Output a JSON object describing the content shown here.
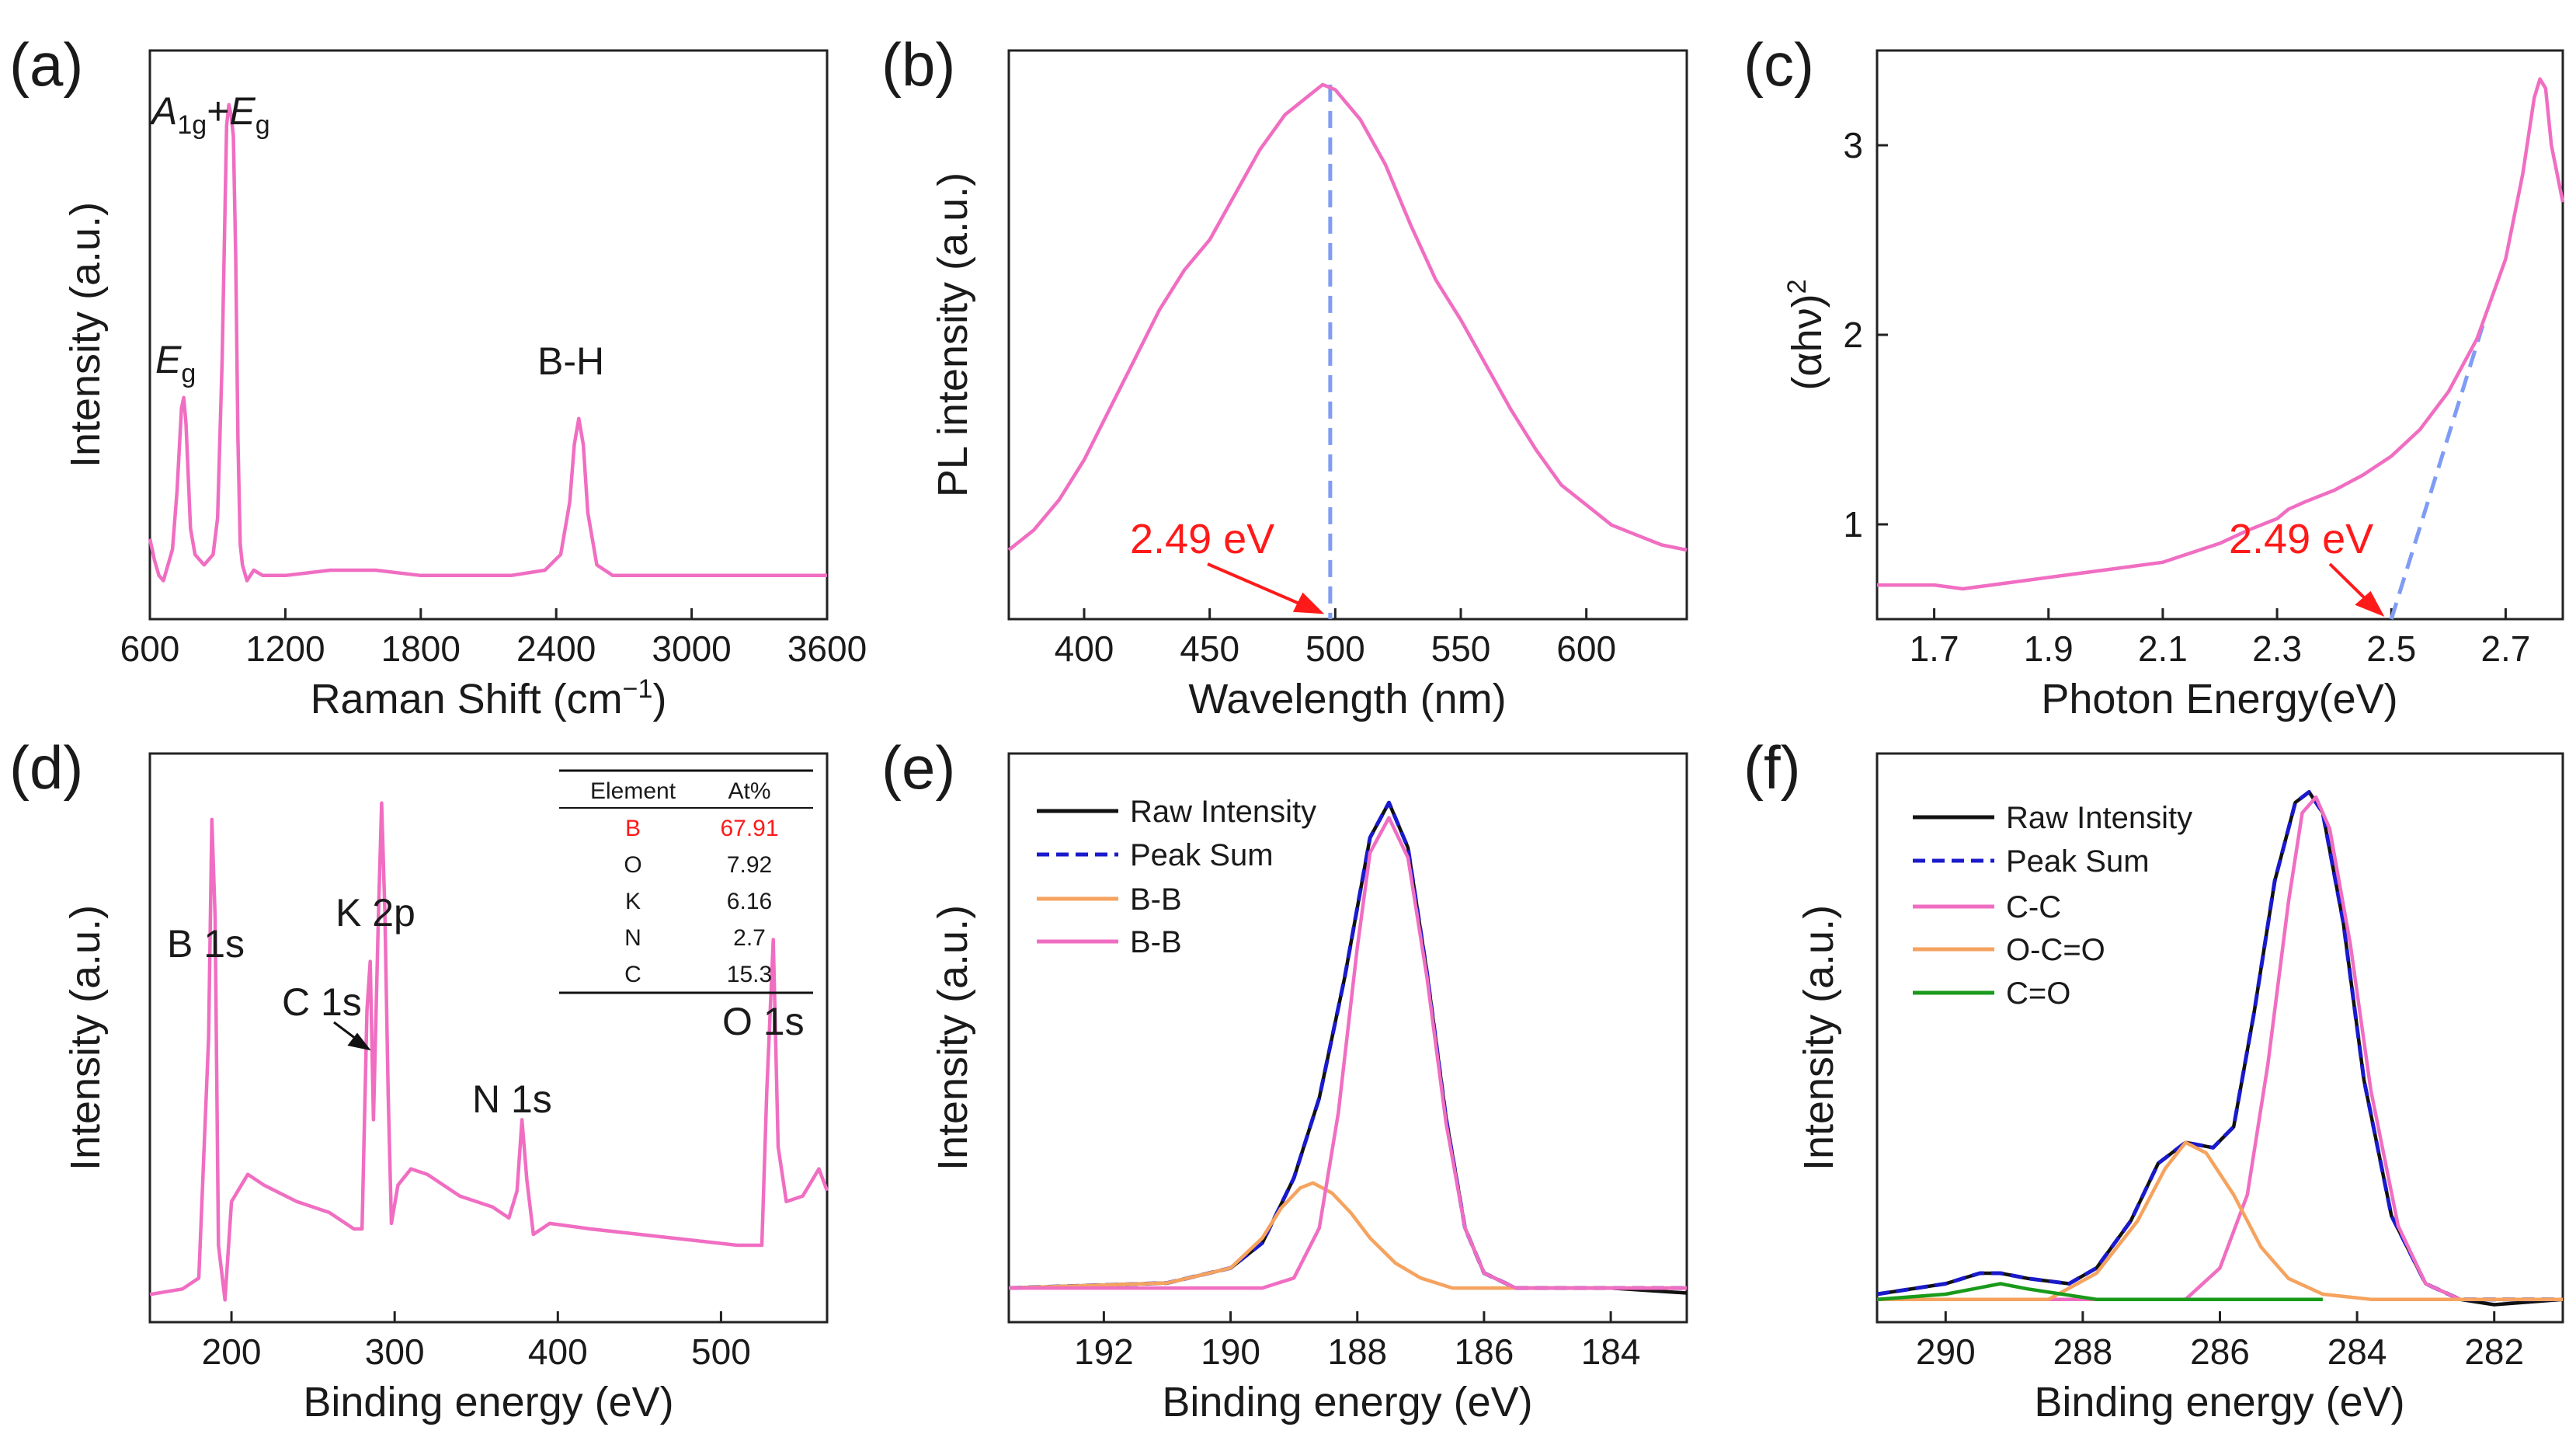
{
  "chart_data": [
    {
      "id": "a",
      "panel_label": "(a)",
      "type": "line",
      "xlabel": "Raman Shift (cm",
      "xlabel_sup": "−1",
      "xlabel_end": ")",
      "ylabel": "Intensity (a.u.)",
      "xlim": [
        600,
        3600
      ],
      "ylim": [
        0,
        1
      ],
      "xticks": [
        600,
        1200,
        1800,
        2400,
        3000,
        3600
      ],
      "series": [
        {
          "name": "Raman",
          "color": "#f06ec2",
          "x": [
            600,
            620,
            640,
            660,
            680,
            700,
            720,
            740,
            750,
            760,
            780,
            800,
            840,
            880,
            900,
            920,
            940,
            950,
            960,
            970,
            980,
            990,
            1000,
            1010,
            1030,
            1060,
            1100,
            1200,
            1400,
            1600,
            1800,
            2000,
            2200,
            2350,
            2420,
            2460,
            2480,
            2500,
            2520,
            2540,
            2580,
            2650,
            2800,
            3000,
            3200,
            3400,
            3600
          ],
          "y": [
            0.11,
            0.07,
            0.04,
            0.03,
            0.06,
            0.09,
            0.2,
            0.36,
            0.38,
            0.33,
            0.13,
            0.08,
            0.06,
            0.08,
            0.15,
            0.45,
            0.9,
            0.94,
            0.92,
            0.88,
            0.65,
            0.3,
            0.1,
            0.06,
            0.03,
            0.05,
            0.04,
            0.04,
            0.05,
            0.05,
            0.04,
            0.04,
            0.04,
            0.05,
            0.08,
            0.18,
            0.29,
            0.34,
            0.29,
            0.16,
            0.06,
            0.04,
            0.04,
            0.04,
            0.04,
            0.04,
            0.04
          ]
        }
      ],
      "annotations": [
        {
          "text": "A",
          "sub": "1g",
          "mid": "+",
          "text2": "E",
          "sub2": "g",
          "x": 950,
          "y": 1.04
        },
        {
          "text": "E",
          "sub": "g",
          "x": 650,
          "y": 0.45
        },
        {
          "text": "B-H",
          "x": 2300,
          "y": 0.4
        }
      ]
    },
    {
      "id": "b",
      "panel_label": "(b)",
      "type": "line",
      "xlabel": "Wavelength (nm)",
      "ylabel": "PL intensity (a.u.)",
      "xlim": [
        370,
        640
      ],
      "ylim": [
        0,
        1
      ],
      "xticks": [
        400,
        450,
        500,
        550,
        600
      ],
      "series": [
        {
          "name": "PL",
          "color": "#f06ec2",
          "x": [
            370,
            380,
            390,
            400,
            410,
            420,
            430,
            440,
            450,
            460,
            470,
            480,
            490,
            495,
            500,
            510,
            520,
            530,
            540,
            550,
            560,
            570,
            580,
            590,
            600,
            610,
            620,
            630,
            640
          ],
          "y": [
            0.07,
            0.11,
            0.17,
            0.25,
            0.35,
            0.45,
            0.55,
            0.63,
            0.69,
            0.78,
            0.87,
            0.94,
            0.98,
            1.0,
            0.99,
            0.93,
            0.84,
            0.72,
            0.61,
            0.53,
            0.44,
            0.35,
            0.27,
            0.2,
            0.16,
            0.12,
            0.1,
            0.08,
            0.07
          ]
        }
      ],
      "annotations": [
        {
          "text": "2.49 eV",
          "x": 495,
          "color": "#ff1a1a"
        }
      ],
      "guide": {
        "x": 498,
        "color": "#7f9cf5"
      }
    },
    {
      "id": "c",
      "panel_label": "(c)",
      "type": "line",
      "xlabel": "Photon Energy(eV)",
      "ylabel": "(αhν)",
      "ylabel_sup": "2",
      "xlim": [
        1.6,
        2.8
      ],
      "ylim": [
        0.5,
        3.5
      ],
      "xticks": [
        1.7,
        1.9,
        2.1,
        2.3,
        2.5,
        2.7
      ],
      "yticks": [
        1,
        2,
        3
      ],
      "series": [
        {
          "name": "Tauc",
          "color": "#f06ec2",
          "x": [
            1.6,
            1.7,
            1.75,
            1.8,
            1.9,
            2.0,
            2.1,
            2.2,
            2.25,
            2.3,
            2.32,
            2.35,
            2.4,
            2.45,
            2.5,
            2.55,
            2.6,
            2.65,
            2.7,
            2.73,
            2.75,
            2.76,
            2.77,
            2.78,
            2.8
          ],
          "y": [
            0.68,
            0.68,
            0.66,
            0.68,
            0.72,
            0.76,
            0.8,
            0.9,
            0.97,
            1.03,
            1.08,
            1.12,
            1.18,
            1.26,
            1.36,
            1.5,
            1.7,
            1.98,
            2.4,
            2.85,
            3.25,
            3.35,
            3.3,
            3.0,
            2.7
          ]
        }
      ],
      "fit_line": {
        "x": [
          2.5,
          2.66
        ],
        "y": [
          0.5,
          2.05
        ],
        "color": "#7f9cf5"
      },
      "annotations": [
        {
          "text": "2.49 eV",
          "x": 2.49,
          "color": "#ff1a1a"
        }
      ]
    },
    {
      "id": "d",
      "panel_label": "(d)",
      "type": "line",
      "xlabel": "Binding energy (eV)",
      "ylabel": "Intensity (a.u.)",
      "xlim": [
        150,
        565
      ],
      "ylim": [
        0,
        1
      ],
      "xticks": [
        200,
        300,
        400,
        500
      ],
      "series": [
        {
          "name": "Survey",
          "color": "#f06ec2",
          "x": [
            150,
            170,
            180,
            186,
            188,
            190,
            192,
            196,
            200,
            210,
            220,
            240,
            260,
            275,
            280,
            283,
            285,
            287,
            290,
            292,
            294,
            296,
            298,
            302,
            310,
            320,
            340,
            360,
            370,
            375,
            378,
            381,
            385,
            395,
            420,
            450,
            480,
            510,
            525,
            528,
            532,
            535,
            540,
            550,
            560,
            565
          ],
          "y": [
            0.03,
            0.04,
            0.06,
            0.5,
            0.9,
            0.72,
            0.12,
            0.02,
            0.2,
            0.25,
            0.23,
            0.2,
            0.18,
            0.15,
            0.15,
            0.55,
            0.64,
            0.35,
            0.72,
            0.93,
            0.73,
            0.4,
            0.16,
            0.23,
            0.26,
            0.25,
            0.21,
            0.19,
            0.17,
            0.22,
            0.35,
            0.24,
            0.14,
            0.16,
            0.15,
            0.14,
            0.13,
            0.12,
            0.12,
            0.4,
            0.68,
            0.3,
            0.2,
            0.21,
            0.26,
            0.22
          ]
        }
      ],
      "annotations": [
        {
          "text": "B 1s",
          "x": 178,
          "y": 0.94
        },
        {
          "text": "C 1s",
          "x": 245,
          "y": 0.78
        },
        {
          "text": "K 2p",
          "x": 268,
          "y": 1.0
        },
        {
          "text": "N 1s",
          "x": 365,
          "y": 0.44
        },
        {
          "text": "O 1s",
          "x": 520,
          "y": 0.74
        }
      ],
      "table": {
        "header": [
          "Element",
          "At%"
        ],
        "rows": [
          {
            "element": "B",
            "value": "67.91",
            "highlight": true
          },
          {
            "element": "O",
            "value": "7.92"
          },
          {
            "element": "K",
            "value": "6.16"
          },
          {
            "element": "N",
            "value": "2.7"
          },
          {
            "element": "C",
            "value": "15.3"
          }
        ]
      }
    },
    {
      "id": "e",
      "panel_label": "(e)",
      "type": "line",
      "xlabel": "Binding energy (eV)",
      "ylabel": "Intensity (a.u.)",
      "xlim": [
        193.5,
        182.8
      ],
      "ylim": [
        0,
        1
      ],
      "xticks": [
        192,
        190,
        188,
        186,
        184
      ],
      "series": [
        {
          "name": "Raw Intensity",
          "color": "#111111",
          "dash": false,
          "x": [
            193.5,
            191,
            190,
            189.5,
            189,
            188.6,
            188.2,
            187.8,
            187.5,
            187.2,
            186.9,
            186.6,
            186.3,
            186,
            185.5,
            184,
            182.8
          ],
          "y": [
            0.0,
            0.01,
            0.04,
            0.09,
            0.22,
            0.38,
            0.62,
            0.9,
            0.97,
            0.88,
            0.63,
            0.34,
            0.12,
            0.03,
            0.0,
            0.0,
            -0.01
          ]
        },
        {
          "name": "Peak Sum",
          "color": "#1a1acc",
          "dash": true,
          "x": [
            193.5,
            191,
            190,
            189.5,
            189,
            188.6,
            188.2,
            187.8,
            187.5,
            187.2,
            186.9,
            186.6,
            186.3,
            186,
            185.5,
            184,
            182.8
          ],
          "y": [
            0.0,
            0.01,
            0.04,
            0.09,
            0.22,
            0.38,
            0.62,
            0.9,
            0.97,
            0.88,
            0.63,
            0.34,
            0.12,
            0.03,
            0.0,
            0.0,
            0.0
          ]
        },
        {
          "name": "B-B",
          "color": "#f5a35f",
          "dash": false,
          "x": [
            193.5,
            191,
            190,
            189.5,
            189.2,
            188.9,
            188.7,
            188.4,
            188.1,
            187.8,
            187.4,
            187,
            186.5,
            185.5,
            182.8
          ],
          "y": [
            0.0,
            0.01,
            0.04,
            0.1,
            0.16,
            0.2,
            0.21,
            0.19,
            0.15,
            0.1,
            0.05,
            0.02,
            0.0,
            0.0,
            0.0
          ]
        },
        {
          "name": "B-B",
          "color": "#f06ec2",
          "dash": false,
          "x": [
            193.5,
            189.5,
            189,
            188.6,
            188.3,
            188,
            187.8,
            187.5,
            187.2,
            186.9,
            186.6,
            186.3,
            186,
            185.5,
            182.8
          ],
          "y": [
            0.0,
            0.0,
            0.02,
            0.12,
            0.35,
            0.68,
            0.87,
            0.94,
            0.86,
            0.62,
            0.33,
            0.12,
            0.03,
            0.0,
            0.0
          ]
        }
      ]
    },
    {
      "id": "f",
      "panel_label": "(f)",
      "type": "line",
      "xlabel": "Binding energy (eV)",
      "ylabel": "Intensity (a.u.)",
      "xlim": [
        291,
        281
      ],
      "ylim": [
        0,
        1
      ],
      "xticks": [
        290,
        288,
        286,
        284,
        282
      ],
      "series": [
        {
          "name": "Raw Intensity",
          "color": "#111111",
          "dash": false,
          "x": [
            291,
            290,
            289.5,
            289.2,
            288.8,
            288.2,
            287.8,
            287.3,
            286.9,
            286.5,
            286.1,
            285.8,
            285.5,
            285.2,
            284.9,
            284.7,
            284.5,
            284.2,
            283.9,
            283.5,
            283,
            282.5,
            282,
            281
          ],
          "y": [
            0.01,
            0.03,
            0.05,
            0.05,
            0.04,
            0.03,
            0.06,
            0.15,
            0.26,
            0.3,
            0.29,
            0.33,
            0.55,
            0.8,
            0.95,
            0.97,
            0.93,
            0.72,
            0.42,
            0.16,
            0.03,
            0.0,
            -0.01,
            0.0
          ]
        },
        {
          "name": "Peak Sum",
          "color": "#1a1acc",
          "dash": true,
          "x": [
            291,
            290,
            289.5,
            289.2,
            288.8,
            288.2,
            287.8,
            287.3,
            286.9,
            286.5,
            286.1,
            285.8,
            285.5,
            285.2,
            284.9,
            284.7,
            284.5,
            284.2,
            283.9,
            283.5,
            283,
            282.5,
            282,
            281
          ],
          "y": [
            0.01,
            0.03,
            0.05,
            0.05,
            0.04,
            0.03,
            0.06,
            0.15,
            0.26,
            0.3,
            0.29,
            0.33,
            0.55,
            0.8,
            0.95,
            0.97,
            0.93,
            0.72,
            0.42,
            0.16,
            0.03,
            0.0,
            0.0,
            0.0
          ]
        },
        {
          "name": "C-C",
          "color": "#f06ec2",
          "dash": false,
          "x": [
            291,
            286.5,
            286,
            285.6,
            285.3,
            285,
            284.8,
            284.6,
            284.4,
            284.1,
            283.8,
            283.4,
            283,
            282.5,
            281
          ],
          "y": [
            0.0,
            0.0,
            0.06,
            0.2,
            0.45,
            0.76,
            0.93,
            0.96,
            0.9,
            0.68,
            0.4,
            0.14,
            0.03,
            0.0,
            0.0
          ]
        },
        {
          "name": "O-C=O",
          "color": "#f5a35f",
          "dash": false,
          "x": [
            291,
            288.5,
            287.8,
            287.2,
            286.8,
            286.5,
            286.2,
            285.8,
            285.4,
            285,
            284.5,
            283.8,
            281
          ],
          "y": [
            0.0,
            0.0,
            0.05,
            0.15,
            0.25,
            0.3,
            0.28,
            0.2,
            0.1,
            0.04,
            0.01,
            0.0,
            0.0
          ]
        },
        {
          "name": "C=O",
          "color": "#1a9a1a",
          "dash": false,
          "x": [
            291,
            290,
            289.6,
            289.2,
            288.8,
            288.3,
            287.8,
            284.5
          ],
          "y": [
            0.0,
            0.01,
            0.02,
            0.03,
            0.02,
            0.01,
            0.0,
            0.0
          ]
        }
      ]
    }
  ]
}
